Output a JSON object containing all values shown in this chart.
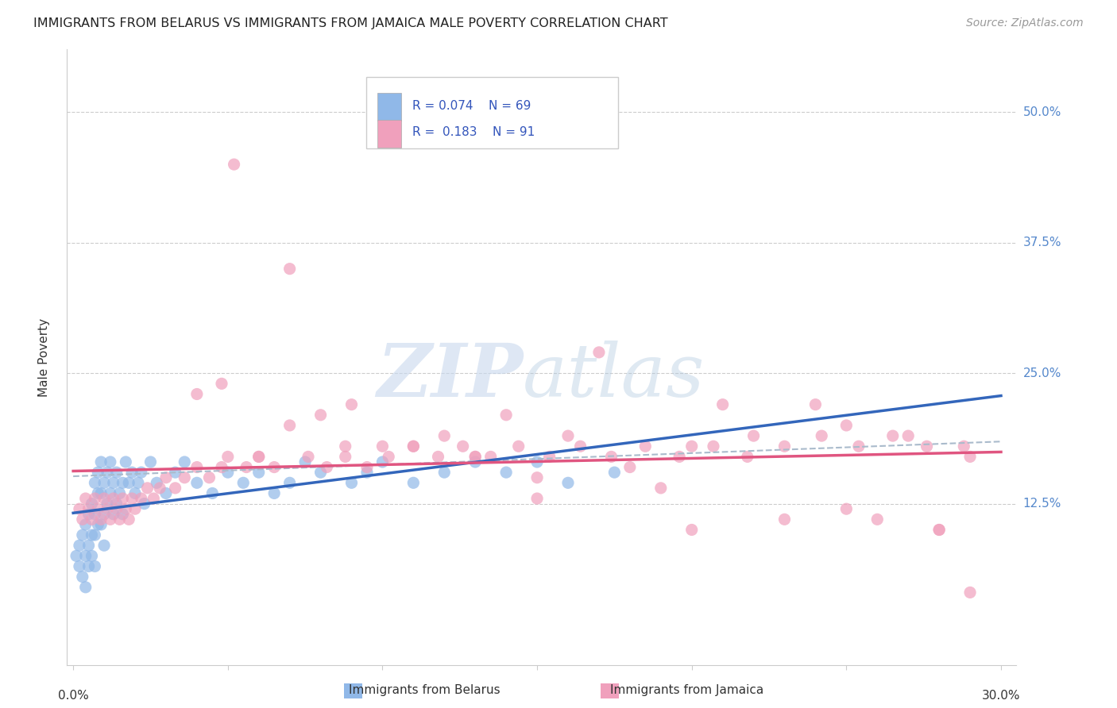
{
  "title": "IMMIGRANTS FROM BELARUS VS IMMIGRANTS FROM JAMAICA MALE POVERTY CORRELATION CHART",
  "source": "Source: ZipAtlas.com",
  "ylabel": "Male Poverty",
  "ytick_labels": [
    "12.5%",
    "25.0%",
    "37.5%",
    "50.0%"
  ],
  "ytick_values": [
    0.125,
    0.25,
    0.375,
    0.5
  ],
  "xlim": [
    -0.002,
    0.305
  ],
  "ylim": [
    -0.03,
    0.56
  ],
  "belarus_color": "#90b8e8",
  "jamaica_color": "#f0a0bc",
  "belarus_line_color": "#3366bb",
  "jamaica_line_color": "#e05580",
  "dash_line_color": "#aaaacc",
  "legend_R1": "0.074",
  "legend_N1": "69",
  "legend_R2": "0.183",
  "legend_N2": "91",
  "legend_label1": "Immigrants from Belarus",
  "legend_label2": "Immigrants from Jamaica",
  "belarus_x": [
    0.001,
    0.002,
    0.002,
    0.003,
    0.003,
    0.004,
    0.004,
    0.004,
    0.005,
    0.005,
    0.005,
    0.006,
    0.006,
    0.006,
    0.007,
    0.007,
    0.007,
    0.007,
    0.008,
    0.008,
    0.008,
    0.009,
    0.009,
    0.009,
    0.01,
    0.01,
    0.01,
    0.011,
    0.011,
    0.012,
    0.012,
    0.013,
    0.013,
    0.014,
    0.014,
    0.015,
    0.016,
    0.016,
    0.017,
    0.018,
    0.019,
    0.02,
    0.021,
    0.022,
    0.023,
    0.025,
    0.027,
    0.03,
    0.033,
    0.036,
    0.04,
    0.045,
    0.05,
    0.055,
    0.06,
    0.065,
    0.07,
    0.075,
    0.08,
    0.09,
    0.095,
    0.1,
    0.11,
    0.12,
    0.13,
    0.14,
    0.15,
    0.16,
    0.175
  ],
  "belarus_y": [
    0.13,
    0.14,
    0.12,
    0.15,
    0.11,
    0.16,
    0.13,
    0.1,
    0.17,
    0.14,
    0.12,
    0.18,
    0.15,
    0.13,
    0.2,
    0.17,
    0.15,
    0.12,
    0.21,
    0.19,
    0.16,
    0.22,
    0.19,
    0.16,
    0.2,
    0.17,
    0.14,
    0.21,
    0.18,
    0.22,
    0.19,
    0.2,
    0.17,
    0.21,
    0.18,
    0.19,
    0.2,
    0.17,
    0.22,
    0.2,
    0.21,
    0.19,
    0.2,
    0.21,
    0.18,
    0.22,
    0.2,
    0.19,
    0.21,
    0.22,
    0.2,
    0.19,
    0.21,
    0.2,
    0.21,
    0.19,
    0.2,
    0.22,
    0.21,
    0.2,
    0.21,
    0.22,
    0.2,
    0.21,
    0.22,
    0.21,
    0.22,
    0.2,
    0.21
  ],
  "jamaica_x": [
    0.002,
    0.003,
    0.004,
    0.005,
    0.006,
    0.007,
    0.008,
    0.009,
    0.01,
    0.011,
    0.012,
    0.013,
    0.014,
    0.015,
    0.016,
    0.017,
    0.018,
    0.019,
    0.02,
    0.022,
    0.024,
    0.026,
    0.028,
    0.03,
    0.033,
    0.036,
    0.04,
    0.044,
    0.048,
    0.052,
    0.056,
    0.06,
    0.065,
    0.07,
    0.076,
    0.082,
    0.088,
    0.095,
    0.102,
    0.11,
    0.118,
    0.126,
    0.135,
    0.144,
    0.154,
    0.164,
    0.174,
    0.185,
    0.196,
    0.207,
    0.218,
    0.23,
    0.242,
    0.254,
    0.265,
    0.276,
    0.288,
    0.048,
    0.088,
    0.13,
    0.17,
    0.21,
    0.25,
    0.29,
    0.04,
    0.08,
    0.12,
    0.16,
    0.2,
    0.24,
    0.28,
    0.06,
    0.1,
    0.14,
    0.18,
    0.22,
    0.26,
    0.05,
    0.15,
    0.25,
    0.07,
    0.11,
    0.19,
    0.23,
    0.15,
    0.2,
    0.27,
    0.28,
    0.29,
    0.09,
    0.13
  ],
  "jamaica_y": [
    0.15,
    0.14,
    0.16,
    0.15,
    0.14,
    0.16,
    0.15,
    0.14,
    0.16,
    0.15,
    0.14,
    0.16,
    0.15,
    0.14,
    0.16,
    0.15,
    0.14,
    0.16,
    0.15,
    0.16,
    0.17,
    0.16,
    0.17,
    0.18,
    0.17,
    0.18,
    0.19,
    0.18,
    0.19,
    0.48,
    0.19,
    0.2,
    0.19,
    0.38,
    0.2,
    0.19,
    0.2,
    0.19,
    0.2,
    0.21,
    0.2,
    0.21,
    0.2,
    0.21,
    0.2,
    0.21,
    0.2,
    0.21,
    0.2,
    0.21,
    0.2,
    0.21,
    0.22,
    0.21,
    0.22,
    0.21,
    0.21,
    0.27,
    0.21,
    0.2,
    0.3,
    0.25,
    0.23,
    0.2,
    0.26,
    0.24,
    0.22,
    0.22,
    0.21,
    0.25,
    0.13,
    0.2,
    0.21,
    0.24,
    0.19,
    0.22,
    0.14,
    0.2,
    0.18,
    0.15,
    0.23,
    0.21,
    0.17,
    0.14,
    0.16,
    0.13,
    0.22,
    0.13,
    0.07,
    0.25,
    0.2
  ]
}
